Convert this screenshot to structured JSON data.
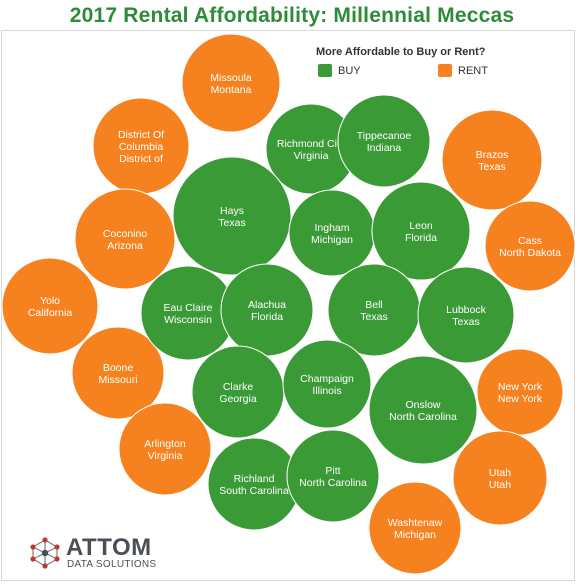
{
  "title": "2017 Rental Affordability: Millennial Meccas",
  "legend": {
    "title": "More Affordable to Buy or Rent?",
    "buy_label": "BUY",
    "rent_label": "RENT",
    "buy_color": "#3a9a36",
    "rent_color": "#f5821f"
  },
  "logo": {
    "name": "ATTOM",
    "subtitle": "DATA SOLUTIONS"
  },
  "chart_data": {
    "type": "bubble",
    "title": "2017 Rental Affordability: Millennial Meccas",
    "legend_title": "More Affordable to Buy or Rent?",
    "categories": [
      "BUY",
      "RENT"
    ],
    "bubbles": [
      {
        "line1": "Missoula",
        "line2": "Montana",
        "category": "RENT"
      },
      {
        "line1": "District Of Columbia",
        "line2": "District of",
        "category": "RENT"
      },
      {
        "line1": "Coconino",
        "line2": "Arizona",
        "category": "RENT"
      },
      {
        "line1": "Yolo",
        "line2": "California",
        "category": "RENT"
      },
      {
        "line1": "Boone",
        "line2": "Missouri",
        "category": "RENT"
      },
      {
        "line1": "Arlington",
        "line2": "Virginia",
        "category": "RENT"
      },
      {
        "line1": "Brazos",
        "line2": "Texas",
        "category": "RENT"
      },
      {
        "line1": "Cass",
        "line2": "North Dakota",
        "category": "RENT"
      },
      {
        "line1": "New York",
        "line2": "New York",
        "category": "RENT"
      },
      {
        "line1": "Utah",
        "line2": "Utah",
        "category": "RENT"
      },
      {
        "line1": "Washtenaw",
        "line2": "Michigan",
        "category": "RENT"
      },
      {
        "line1": "Richmond City",
        "line2": "Virginia",
        "category": "BUY"
      },
      {
        "line1": "Tippecanoe",
        "line2": "Indiana",
        "category": "BUY"
      },
      {
        "line1": "Hays",
        "line2": "Texas",
        "category": "BUY"
      },
      {
        "line1": "Ingham",
        "line2": "Michigan",
        "category": "BUY"
      },
      {
        "line1": "Leon",
        "line2": "Florida",
        "category": "BUY"
      },
      {
        "line1": "Eau Claire",
        "line2": "Wisconsin",
        "category": "BUY"
      },
      {
        "line1": "Alachua",
        "line2": "Florida",
        "category": "BUY"
      },
      {
        "line1": "Bell",
        "line2": "Texas",
        "category": "BUY"
      },
      {
        "line1": "Lubbock",
        "line2": "Texas",
        "category": "BUY"
      },
      {
        "line1": "Clarke",
        "line2": "Georgia",
        "category": "BUY"
      },
      {
        "line1": "Champaign",
        "line2": "Illinois",
        "category": "BUY"
      },
      {
        "line1": "Onslow",
        "line2": "North Carolina",
        "category": "BUY"
      },
      {
        "line1": "Richland",
        "line2": "South Carolina",
        "category": "BUY"
      },
      {
        "line1": "Pitt",
        "line2": "North Carolina",
        "category": "BUY"
      }
    ]
  }
}
